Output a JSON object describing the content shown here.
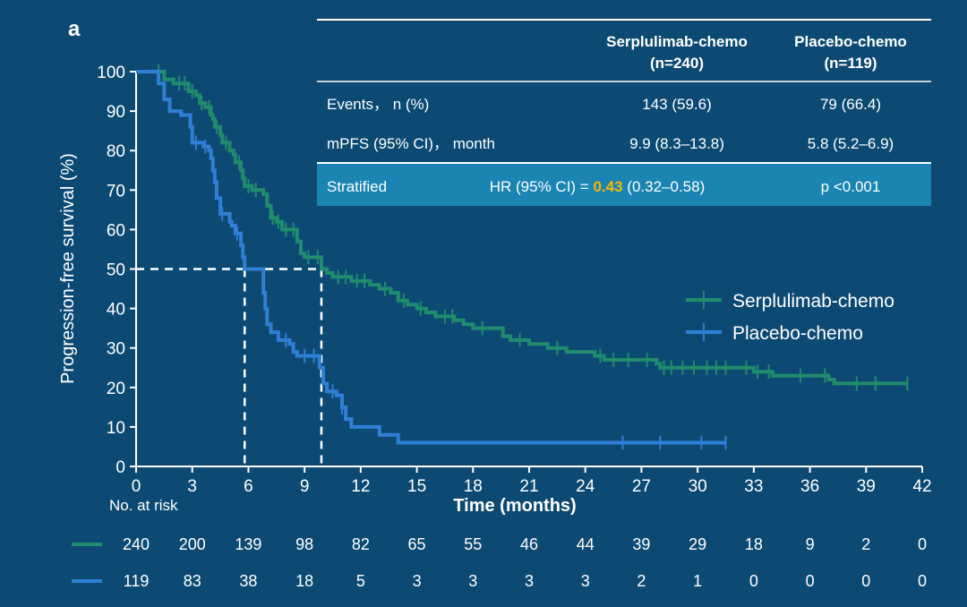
{
  "panel_label": "a",
  "colors": {
    "background": "#0d4a73",
    "serplulimab": "#1f8c6e",
    "placebo": "#2e7fd6",
    "table_highlight": "#1a85b3",
    "hr_value": "#f2b705",
    "text": "#ffffff"
  },
  "summary_table": {
    "col_headers": [
      {
        "line1": "Serplulimab-chemo",
        "line2": "(n=240)"
      },
      {
        "line1": "Placebo-chemo",
        "line2": "(n=119)"
      }
    ],
    "rows": [
      {
        "label": "Events， n (%)",
        "values": [
          "143 (59.6)",
          "79 (66.4)"
        ]
      },
      {
        "label": "mPFS (95% CI)， month",
        "values": [
          "9.9 (8.3–13.8)",
          "5.8 (5.2–6.9)"
        ]
      }
    ],
    "stratified": {
      "label": "Stratified",
      "hr_prefix": "HR (95% CI) = ",
      "hr_value": "0.43",
      "hr_ci": " (0.32–0.58)",
      "p_value": "p <0.001"
    }
  },
  "risk_table": {
    "label": "No. at risk",
    "times": [
      0,
      3,
      6,
      9,
      12,
      15,
      18,
      21,
      24,
      27,
      30,
      33,
      36,
      39,
      42
    ],
    "rows": [
      {
        "series": "Serplulimab-chemo",
        "counts": [
          "240",
          "200",
          "139",
          "98",
          "82",
          "65",
          "55",
          "46",
          "44",
          "39",
          "29",
          "18",
          "9",
          "2",
          "0"
        ]
      },
      {
        "series": "Placebo-chemo",
        "counts": [
          "119",
          "83",
          "38",
          "18",
          "5",
          "3",
          "3",
          "3",
          "3",
          "2",
          "1",
          "0",
          "0",
          "0",
          "0"
        ]
      }
    ]
  },
  "chart_data": {
    "type": "line",
    "subtype": "kaplan-meier step",
    "xlabel": "Time (months)",
    "ylabel": "Progression-free survival (%)",
    "xlim": [
      0,
      42
    ],
    "ylim": [
      0,
      100
    ],
    "xticks": [
      0,
      3,
      6,
      9,
      12,
      15,
      18,
      21,
      24,
      27,
      30,
      33,
      36,
      39,
      42
    ],
    "yticks": [
      0,
      10,
      20,
      30,
      40,
      50,
      60,
      70,
      80,
      90,
      100
    ],
    "legend_position": "right",
    "median_reference": {
      "y": 50,
      "x_values": [
        5.8,
        9.9
      ]
    },
    "series": [
      {
        "name": "Serplulimab-chemo",
        "color": "#1f8c6e",
        "points": [
          [
            0,
            100
          ],
          [
            1.3,
            100
          ],
          [
            1.5,
            98
          ],
          [
            2,
            97
          ],
          [
            2.8,
            95
          ],
          [
            3.2,
            94
          ],
          [
            3.4,
            92
          ],
          [
            3.7,
            91
          ],
          [
            4,
            89
          ],
          [
            4.1,
            88
          ],
          [
            4.2,
            86
          ],
          [
            4.5,
            84
          ],
          [
            4.6,
            82
          ],
          [
            5,
            80
          ],
          [
            5.2,
            79
          ],
          [
            5.3,
            77
          ],
          [
            5.6,
            75
          ],
          [
            5.7,
            73
          ],
          [
            5.8,
            71
          ],
          [
            6.2,
            70
          ],
          [
            6.6,
            70
          ],
          [
            6.8,
            69
          ],
          [
            7,
            66
          ],
          [
            7.2,
            63
          ],
          [
            7.5,
            62
          ],
          [
            7.8,
            60
          ],
          [
            8.2,
            60
          ],
          [
            8.6,
            57
          ],
          [
            8.8,
            54
          ],
          [
            9,
            53
          ],
          [
            9.5,
            53
          ],
          [
            9.9,
            50
          ],
          [
            10.2,
            49
          ],
          [
            10.5,
            48
          ],
          [
            11.5,
            47
          ],
          [
            12.5,
            46
          ],
          [
            13,
            45
          ],
          [
            13.6,
            44
          ],
          [
            14,
            42
          ],
          [
            14.5,
            41
          ],
          [
            15,
            40
          ],
          [
            15.5,
            39
          ],
          [
            16,
            38
          ],
          [
            17,
            37
          ],
          [
            17.5,
            36
          ],
          [
            18,
            35
          ],
          [
            19,
            35
          ],
          [
            19.6,
            33
          ],
          [
            20,
            32
          ],
          [
            21,
            31
          ],
          [
            22,
            30
          ],
          [
            23,
            29
          ],
          [
            24,
            29
          ],
          [
            24.5,
            28
          ],
          [
            25,
            27
          ],
          [
            26,
            27
          ],
          [
            27,
            27
          ],
          [
            27.8,
            26
          ],
          [
            28,
            25
          ],
          [
            30,
            25
          ],
          [
            32,
            25
          ],
          [
            33,
            24
          ],
          [
            34,
            23
          ],
          [
            35,
            23
          ],
          [
            36,
            23
          ],
          [
            37,
            22
          ],
          [
            37.3,
            21
          ],
          [
            39,
            21
          ],
          [
            41.2,
            21
          ]
        ],
        "censor_x": [
          1.2,
          2.3,
          2.6,
          3.0,
          3.5,
          3.9,
          4.3,
          4.8,
          5.5,
          6.0,
          6.4,
          7.3,
          7.6,
          8.0,
          8.4,
          9.2,
          9.7,
          10.8,
          11.2,
          11.8,
          12.2,
          13.3,
          14.3,
          15.2,
          16.5,
          16.9,
          18.5,
          20.5,
          22.5,
          24.8,
          25.5,
          26.3,
          27.3,
          28.2,
          28.6,
          29.2,
          29.8,
          30.5,
          31.0,
          31.5,
          32.6,
          33.2,
          33.8,
          35.5,
          36.8,
          38.5,
          39.5,
          41.2
        ]
      },
      {
        "name": "Placebo-chemo",
        "color": "#2e7fd6",
        "points": [
          [
            0,
            100
          ],
          [
            1,
            100
          ],
          [
            1.2,
            97
          ],
          [
            1.5,
            93
          ],
          [
            1.8,
            90
          ],
          [
            2.4,
            89
          ],
          [
            2.9,
            86
          ],
          [
            3,
            82
          ],
          [
            3.6,
            81
          ],
          [
            3.9,
            80
          ],
          [
            4,
            78
          ],
          [
            4.1,
            75
          ],
          [
            4.2,
            72
          ],
          [
            4.3,
            68
          ],
          [
            4.5,
            64
          ],
          [
            5,
            62
          ],
          [
            5.1,
            61
          ],
          [
            5.3,
            59
          ],
          [
            5.6,
            56
          ],
          [
            5.7,
            53
          ],
          [
            5.8,
            50
          ],
          [
            6.5,
            50
          ],
          [
            6.8,
            44
          ],
          [
            6.9,
            40
          ],
          [
            7,
            36
          ],
          [
            7.2,
            34
          ],
          [
            7.6,
            32
          ],
          [
            8.2,
            31
          ],
          [
            8.4,
            29
          ],
          [
            8.6,
            28
          ],
          [
            9.8,
            25
          ],
          [
            10,
            21
          ],
          [
            10.2,
            19
          ],
          [
            10.7,
            18
          ],
          [
            11,
            15
          ],
          [
            11.2,
            12
          ],
          [
            11.5,
            10
          ],
          [
            13,
            8
          ],
          [
            14,
            6
          ],
          [
            31.5,
            6
          ]
        ],
        "censor_x": [
          3.2,
          3.7,
          4.6,
          5.4,
          8.0,
          9.0,
          9.5,
          10.5,
          11.0,
          26.0,
          28.0,
          30.2,
          31.5
        ]
      }
    ]
  }
}
